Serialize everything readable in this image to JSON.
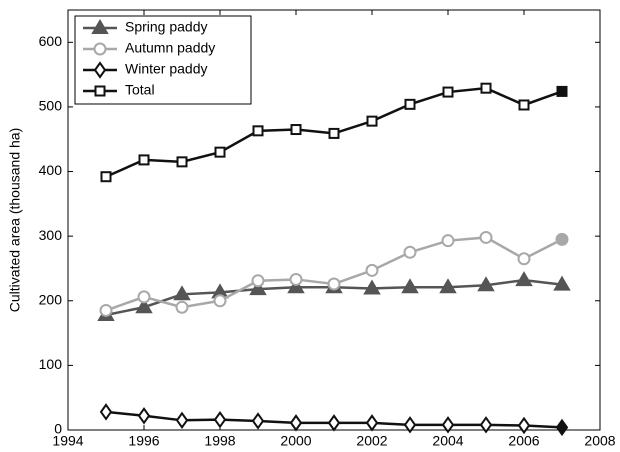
{
  "chart_data": {
    "type": "line",
    "y_label": "Cultivated area (thousand ha)",
    "x": [
      1995,
      1996,
      1997,
      1998,
      1999,
      2000,
      2001,
      2002,
      2003,
      2004,
      2005,
      2006,
      2007
    ],
    "series": [
      {
        "name": "Spring paddy",
        "color": "#555555",
        "marker": "triangle",
        "values": [
          178,
          190,
          210,
          213,
          218,
          221,
          221,
          219,
          221,
          221,
          224,
          232,
          225
        ]
      },
      {
        "name": "Autumn paddy",
        "color": "#a8a8a8",
        "marker": "circle",
        "values": [
          185,
          206,
          190,
          200,
          231,
          233,
          226,
          247,
          275,
          293,
          298,
          265,
          295
        ]
      },
      {
        "name": "Winter paddy",
        "color": "#111111",
        "marker": "diamond",
        "values": [
          28,
          22,
          15,
          16,
          14,
          11,
          11,
          11,
          8,
          8,
          8,
          7,
          4
        ]
      },
      {
        "name": "Total",
        "color": "#111111",
        "marker": "square",
        "values": [
          392,
          418,
          415,
          430,
          463,
          465,
          459,
          478,
          504,
          523,
          529,
          503,
          524
        ]
      }
    ],
    "xlim": [
      1994,
      2008
    ],
    "xticks": [
      1994,
      1996,
      1998,
      2000,
      2002,
      2004,
      2006,
      2008
    ],
    "ylim": [
      0,
      650
    ],
    "yticks": [
      0,
      100,
      200,
      300,
      400,
      500,
      600
    ],
    "legend": "upper-left"
  }
}
